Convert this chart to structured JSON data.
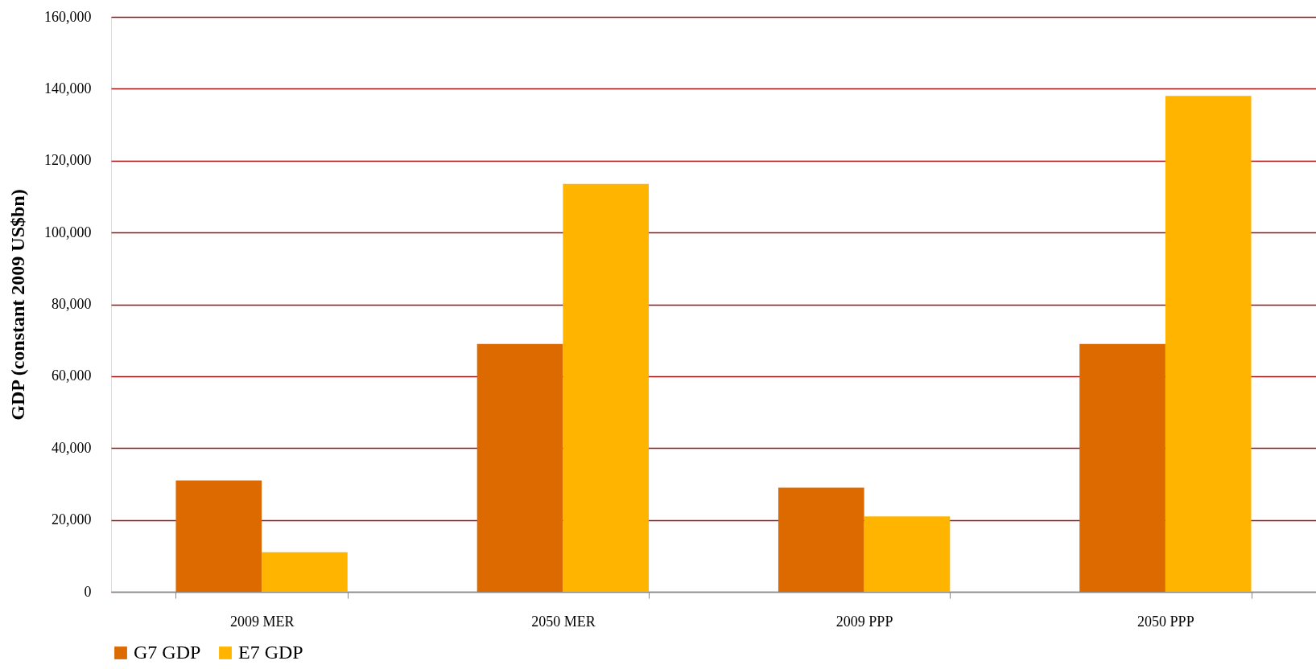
{
  "chart_data": {
    "type": "bar",
    "ylabel": "GDP (constant 2009 US$bn)",
    "categories": [
      "2009 MER",
      "2050 MER",
      "2009 PPP",
      "2050 PPP"
    ],
    "series": [
      {
        "name": "G7 GDP",
        "color": "#dd6a00",
        "values": [
          31000,
          69000,
          29000,
          69000
        ]
      },
      {
        "name": "E7 GDP",
        "color": "#ffb400",
        "values": [
          11000,
          113500,
          21000,
          138000
        ]
      }
    ],
    "ylim": [
      0,
      160000
    ],
    "yticks": [
      0,
      {
        "value": 20000,
        "label": "20,000"
      },
      {
        "value": 40000,
        "label": "40,000"
      },
      {
        "value": 60000,
        "label": "60,000"
      },
      {
        "value": 80000,
        "label": "80,000"
      },
      {
        "value": 100000,
        "label": "100,000"
      },
      {
        "value": 120000,
        "label": "120,000"
      },
      {
        "value": 140000,
        "label": "140,000"
      },
      {
        "value": 160000,
        "label": "160,000"
      }
    ],
    "grid": "y",
    "legend": "bottom"
  }
}
